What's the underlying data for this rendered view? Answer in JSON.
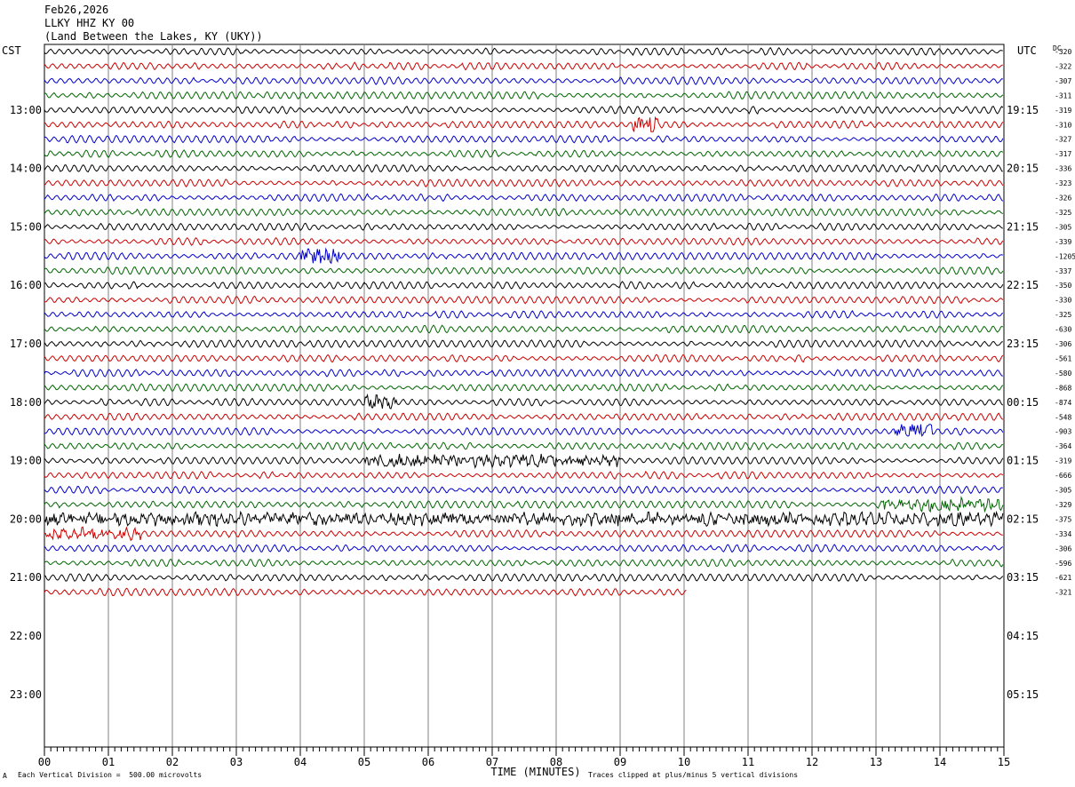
{
  "header": {
    "date": "Feb26,2026",
    "station": "LLKY HHZ KY 00",
    "location": "(Land Between the Lakes, KY (UKY))"
  },
  "left_timezone": "CST",
  "right_timezone": "UTC",
  "dc_label": "DC",
  "footer": {
    "division": "Each Vertical Division =  500.00 microvolts",
    "clip_note": "Traces clipped at plus/minus 5 vertical divisions",
    "corner_mark": "A"
  },
  "colors": {
    "black": "#000000",
    "red": "#cc0000",
    "blue": "#0000cc",
    "green": "#006600",
    "grid": "#808080"
  },
  "chart_data": {
    "type": "line",
    "title": "Feb26,2026 LLKY HHZ KY 00",
    "xlabel": "TIME (MINUTES)",
    "ylabel": "",
    "x_range": [
      0,
      15
    ],
    "x_ticks": [
      "00",
      "01",
      "02",
      "03",
      "04",
      "05",
      "06",
      "07",
      "08",
      "09",
      "10",
      "11",
      "12",
      "13",
      "14",
      "15"
    ],
    "minutes_per_trace": 15,
    "traces_per_hour": 4,
    "hour_labels_left": [
      "13:00",
      "14:00",
      "15:00",
      "16:00",
      "17:00",
      "18:00",
      "19:00",
      "20:00",
      "21:00",
      "22:00",
      "23:00"
    ],
    "hour_labels_right": [
      "19:15",
      "20:15",
      "21:15",
      "22:15",
      "23:15",
      "00:15",
      "01:15",
      "02:15",
      "03:15",
      "04:15",
      "05:15"
    ],
    "color_cycle": [
      "black",
      "red",
      "blue",
      "green"
    ],
    "dc_offsets": [
      "-320",
      "-322",
      "-307",
      "-311",
      "-319",
      "-310",
      "-327",
      "-317",
      "-336",
      "-323",
      "-326",
      "-325",
      "-305",
      "-339",
      "-1205",
      "-337",
      "-350",
      "-330",
      "-325",
      "-630",
      "-306",
      "-561",
      "-580",
      "-868",
      "-874",
      "-548",
      "-903",
      "-364",
      "-319",
      "-666",
      "-305",
      "-329",
      "-375",
      "-334",
      "-306",
      "-596",
      "-621",
      "-321"
    ],
    "last_trace_end_minute": 10.05,
    "events": [
      {
        "trace": 5,
        "start_min": 9.2,
        "end_min": 9.6,
        "amplitude": 2.0
      },
      {
        "trace": 14,
        "start_min": 4.0,
        "end_min": 4.6,
        "amplitude": 2.2
      },
      {
        "trace": 24,
        "start_min": 5.0,
        "end_min": 5.5,
        "amplitude": 1.6
      },
      {
        "trace": 26,
        "start_min": 13.3,
        "end_min": 13.9,
        "amplitude": 2.0
      },
      {
        "trace": 28,
        "start_min": 5.0,
        "end_min": 9.0,
        "amplitude": 1.3
      },
      {
        "trace": 31,
        "start_min": 13.0,
        "end_min": 15.0,
        "amplitude": 1.3
      },
      {
        "trace": 32,
        "start_min": 0.0,
        "end_min": 15.0,
        "amplitude": 1.4
      },
      {
        "trace": 33,
        "start_min": 0.0,
        "end_min": 1.5,
        "amplitude": 1.4
      }
    ]
  }
}
